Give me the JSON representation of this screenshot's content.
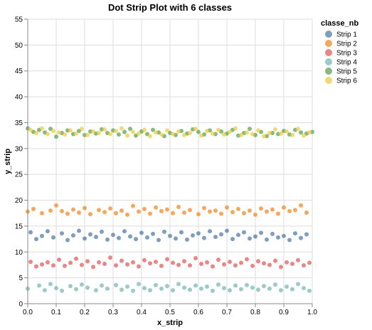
{
  "chart_data": {
    "type": "scatter",
    "title": "Dot Strip Plot with 6 classes",
    "xlabel": "x_strip",
    "ylabel": "y_strip",
    "xlim": [
      0,
      1
    ],
    "ylim": [
      0,
      55
    ],
    "x_ticks": [
      "0.0",
      "0.1",
      "0.2",
      "0.3",
      "0.4",
      "0.5",
      "0.6",
      "0.7",
      "0.8",
      "0.9",
      "1.0"
    ],
    "y_ticks": [
      "0",
      "5",
      "10",
      "15",
      "20",
      "25",
      "30",
      "35",
      "40",
      "45",
      "50",
      "55"
    ],
    "grid": true,
    "legend": {
      "title": "classe_nb",
      "placement": "top-right",
      "entries": [
        "Strip 1",
        "Strip 2",
        "Strip 3",
        "Strip 4",
        "Strip 5",
        "Strip 6"
      ]
    },
    "series": [
      {
        "name": "Strip 1",
        "color": "#4c78a8",
        "points": [
          [
            0.01,
            13.8
          ],
          [
            0.03,
            12.5
          ],
          [
            0.05,
            13.1
          ],
          [
            0.07,
            14.0
          ],
          [
            0.09,
            12.8
          ],
          [
            0.12,
            13.6
          ],
          [
            0.14,
            12.3
          ],
          [
            0.16,
            13.2
          ],
          [
            0.18,
            14.1
          ],
          [
            0.2,
            12.6
          ],
          [
            0.22,
            13.4
          ],
          [
            0.24,
            12.9
          ],
          [
            0.26,
            13.9
          ],
          [
            0.28,
            12.4
          ],
          [
            0.3,
            13.3
          ],
          [
            0.32,
            12.7
          ],
          [
            0.34,
            14.0
          ],
          [
            0.36,
            13.0
          ],
          [
            0.38,
            12.5
          ],
          [
            0.4,
            13.7
          ],
          [
            0.42,
            12.8
          ],
          [
            0.44,
            13.5
          ],
          [
            0.46,
            12.3
          ],
          [
            0.48,
            13.9
          ],
          [
            0.5,
            13.1
          ],
          [
            0.52,
            12.6
          ],
          [
            0.54,
            13.8
          ],
          [
            0.56,
            12.4
          ],
          [
            0.58,
            13.2
          ],
          [
            0.6,
            13.6
          ],
          [
            0.62,
            12.7
          ],
          [
            0.64,
            14.0
          ],
          [
            0.66,
            12.9
          ],
          [
            0.68,
            13.4
          ],
          [
            0.7,
            14.1
          ],
          [
            0.72,
            12.5
          ],
          [
            0.74,
            13.3
          ],
          [
            0.76,
            13.8
          ],
          [
            0.78,
            12.6
          ],
          [
            0.8,
            13.0
          ],
          [
            0.82,
            13.7
          ],
          [
            0.84,
            12.4
          ],
          [
            0.86,
            13.5
          ],
          [
            0.88,
            12.8
          ],
          [
            0.9,
            13.1
          ],
          [
            0.92,
            12.3
          ],
          [
            0.94,
            13.6
          ],
          [
            0.96,
            12.7
          ],
          [
            0.98,
            13.4
          ]
        ]
      },
      {
        "name": "Strip 2",
        "color": "#f58518",
        "points": [
          [
            0.0,
            17.8
          ],
          [
            0.02,
            18.3
          ],
          [
            0.05,
            17.5
          ],
          [
            0.08,
            18.0
          ],
          [
            0.1,
            19.0
          ],
          [
            0.12,
            17.9
          ],
          [
            0.14,
            17.4
          ],
          [
            0.16,
            18.2
          ],
          [
            0.18,
            17.6
          ],
          [
            0.2,
            18.5
          ],
          [
            0.22,
            17.3
          ],
          [
            0.25,
            18.1
          ],
          [
            0.27,
            17.7
          ],
          [
            0.29,
            18.4
          ],
          [
            0.31,
            17.5
          ],
          [
            0.33,
            18.0
          ],
          [
            0.35,
            17.2
          ],
          [
            0.37,
            18.9
          ],
          [
            0.39,
            17.8
          ],
          [
            0.41,
            18.3
          ],
          [
            0.43,
            17.4
          ],
          [
            0.45,
            18.6
          ],
          [
            0.47,
            17.9
          ],
          [
            0.49,
            18.2
          ],
          [
            0.51,
            17.5
          ],
          [
            0.53,
            18.7
          ],
          [
            0.55,
            17.6
          ],
          [
            0.57,
            18.1
          ],
          [
            0.6,
            17.3
          ],
          [
            0.62,
            18.5
          ],
          [
            0.64,
            17.8
          ],
          [
            0.66,
            18.0
          ],
          [
            0.68,
            17.4
          ],
          [
            0.7,
            18.6
          ],
          [
            0.72,
            17.7
          ],
          [
            0.74,
            18.3
          ],
          [
            0.76,
            17.5
          ],
          [
            0.78,
            18.0
          ],
          [
            0.8,
            17.2
          ],
          [
            0.82,
            18.4
          ],
          [
            0.84,
            17.8
          ],
          [
            0.86,
            18.2
          ],
          [
            0.88,
            17.4
          ],
          [
            0.9,
            18.6
          ],
          [
            0.92,
            17.9
          ],
          [
            0.94,
            18.1
          ],
          [
            0.96,
            19.0
          ],
          [
            0.98,
            17.6
          ]
        ]
      },
      {
        "name": "Strip 3",
        "color": "#e45756",
        "points": [
          [
            0.01,
            8.1
          ],
          [
            0.03,
            7.2
          ],
          [
            0.05,
            7.6
          ],
          [
            0.07,
            8.0
          ],
          [
            0.09,
            7.4
          ],
          [
            0.11,
            8.5
          ],
          [
            0.13,
            7.3
          ],
          [
            0.15,
            7.9
          ],
          [
            0.17,
            8.7
          ],
          [
            0.19,
            7.5
          ],
          [
            0.21,
            8.2
          ],
          [
            0.23,
            7.1
          ],
          [
            0.25,
            8.0
          ],
          [
            0.27,
            7.7
          ],
          [
            0.29,
            8.9
          ],
          [
            0.31,
            7.4
          ],
          [
            0.33,
            8.3
          ],
          [
            0.35,
            7.6
          ],
          [
            0.37,
            8.0
          ],
          [
            0.39,
            7.2
          ],
          [
            0.41,
            8.4
          ],
          [
            0.43,
            7.8
          ],
          [
            0.45,
            8.1
          ],
          [
            0.47,
            7.3
          ],
          [
            0.49,
            8.6
          ],
          [
            0.51,
            7.9
          ],
          [
            0.53,
            7.5
          ],
          [
            0.55,
            8.2
          ],
          [
            0.57,
            7.4
          ],
          [
            0.59,
            8.8
          ],
          [
            0.61,
            7.7
          ],
          [
            0.63,
            8.0
          ],
          [
            0.65,
            7.2
          ],
          [
            0.67,
            8.5
          ],
          [
            0.69,
            7.6
          ],
          [
            0.71,
            8.1
          ],
          [
            0.73,
            7.4
          ],
          [
            0.75,
            7.9
          ],
          [
            0.77,
            8.6
          ],
          [
            0.79,
            7.3
          ],
          [
            0.81,
            8.2
          ],
          [
            0.83,
            7.8
          ],
          [
            0.85,
            7.5
          ],
          [
            0.87,
            8.3
          ],
          [
            0.89,
            7.1
          ],
          [
            0.91,
            8.0
          ],
          [
            0.93,
            7.7
          ],
          [
            0.95,
            8.4
          ],
          [
            0.97,
            7.4
          ],
          [
            0.99,
            7.9
          ]
        ]
      },
      {
        "name": "Strip 4",
        "color": "#72b7b2",
        "points": [
          [
            0.0,
            2.9
          ],
          [
            0.04,
            3.5
          ],
          [
            0.06,
            2.6
          ],
          [
            0.08,
            3.8
          ],
          [
            0.1,
            3.0
          ],
          [
            0.12,
            2.5
          ],
          [
            0.15,
            3.4
          ],
          [
            0.17,
            2.8
          ],
          [
            0.19,
            3.7
          ],
          [
            0.21,
            3.1
          ],
          [
            0.24,
            2.6
          ],
          [
            0.26,
            3.5
          ],
          [
            0.28,
            2.9
          ],
          [
            0.31,
            3.6
          ],
          [
            0.33,
            2.7
          ],
          [
            0.35,
            3.3
          ],
          [
            0.37,
            2.5
          ],
          [
            0.39,
            3.8
          ],
          [
            0.41,
            3.0
          ],
          [
            0.43,
            2.6
          ],
          [
            0.45,
            3.6
          ],
          [
            0.47,
            2.9
          ],
          [
            0.49,
            3.4
          ],
          [
            0.51,
            2.6
          ],
          [
            0.53,
            3.8
          ],
          [
            0.55,
            3.1
          ],
          [
            0.57,
            2.7
          ],
          [
            0.59,
            3.5
          ],
          [
            0.61,
            2.9
          ],
          [
            0.63,
            3.3
          ],
          [
            0.65,
            2.5
          ],
          [
            0.67,
            3.7
          ],
          [
            0.69,
            3.0
          ],
          [
            0.71,
            2.6
          ],
          [
            0.73,
            3.5
          ],
          [
            0.75,
            2.8
          ],
          [
            0.77,
            3.6
          ],
          [
            0.79,
            3.1
          ],
          [
            0.81,
            2.7
          ],
          [
            0.83,
            3.4
          ],
          [
            0.85,
            2.9
          ],
          [
            0.87,
            3.7
          ],
          [
            0.89,
            2.6
          ],
          [
            0.91,
            3.3
          ],
          [
            0.93,
            2.8
          ],
          [
            0.95,
            3.8
          ],
          [
            0.97,
            3.0
          ],
          [
            0.99,
            2.5
          ]
        ]
      },
      {
        "name": "Strip 5",
        "color": "#54a24b",
        "points": [
          [
            0.0,
            33.9
          ],
          [
            0.02,
            33.2
          ],
          [
            0.04,
            33.6
          ],
          [
            0.06,
            33.1
          ],
          [
            0.08,
            33.8
          ],
          [
            0.1,
            32.3
          ],
          [
            0.12,
            33.0
          ],
          [
            0.14,
            33.5
          ],
          [
            0.16,
            32.8
          ],
          [
            0.18,
            33.4
          ],
          [
            0.2,
            32.6
          ],
          [
            0.22,
            33.3
          ],
          [
            0.24,
            32.9
          ],
          [
            0.26,
            33.7
          ],
          [
            0.28,
            33.0
          ],
          [
            0.3,
            33.5
          ],
          [
            0.32,
            32.7
          ],
          [
            0.34,
            33.2
          ],
          [
            0.36,
            33.8
          ],
          [
            0.38,
            32.5
          ],
          [
            0.4,
            33.3
          ],
          [
            0.42,
            32.8
          ],
          [
            0.44,
            33.6
          ],
          [
            0.46,
            33.1
          ],
          [
            0.48,
            32.4
          ],
          [
            0.5,
            33.0
          ],
          [
            0.52,
            32.6
          ],
          [
            0.54,
            33.4
          ],
          [
            0.56,
            32.9
          ],
          [
            0.58,
            33.7
          ],
          [
            0.6,
            33.2
          ],
          [
            0.62,
            32.7
          ],
          [
            0.64,
            33.5
          ],
          [
            0.66,
            32.8
          ],
          [
            0.68,
            33.3
          ],
          [
            0.7,
            32.9
          ],
          [
            0.72,
            33.6
          ],
          [
            0.74,
            32.5
          ],
          [
            0.76,
            33.0
          ],
          [
            0.78,
            33.8
          ],
          [
            0.8,
            32.6
          ],
          [
            0.82,
            33.2
          ],
          [
            0.84,
            32.4
          ],
          [
            0.86,
            33.0
          ],
          [
            0.88,
            32.8
          ],
          [
            0.9,
            33.4
          ],
          [
            0.92,
            32.7
          ],
          [
            0.94,
            33.6
          ],
          [
            0.96,
            33.1
          ],
          [
            0.98,
            32.9
          ],
          [
            1.0,
            33.2
          ]
        ]
      },
      {
        "name": "Strip 6",
        "color": "#eeca3b",
        "points": [
          [
            0.01,
            33.6
          ],
          [
            0.03,
            33.0
          ],
          [
            0.05,
            33.9
          ],
          [
            0.07,
            32.8
          ],
          [
            0.09,
            33.4
          ],
          [
            0.11,
            33.1
          ],
          [
            0.13,
            32.7
          ],
          [
            0.15,
            33.5
          ],
          [
            0.17,
            32.9
          ],
          [
            0.19,
            33.8
          ],
          [
            0.21,
            32.6
          ],
          [
            0.23,
            33.3
          ],
          [
            0.25,
            33.0
          ],
          [
            0.27,
            33.7
          ],
          [
            0.29,
            32.8
          ],
          [
            0.31,
            33.4
          ],
          [
            0.33,
            33.9
          ],
          [
            0.35,
            32.5
          ],
          [
            0.37,
            33.2
          ],
          [
            0.39,
            32.9
          ],
          [
            0.41,
            33.6
          ],
          [
            0.43,
            32.4
          ],
          [
            0.45,
            33.1
          ],
          [
            0.47,
            32.7
          ],
          [
            0.49,
            33.5
          ],
          [
            0.51,
            32.8
          ],
          [
            0.53,
            33.3
          ],
          [
            0.55,
            32.6
          ],
          [
            0.57,
            33.0
          ],
          [
            0.59,
            33.8
          ],
          [
            0.61,
            32.5
          ],
          [
            0.63,
            33.4
          ],
          [
            0.65,
            32.9
          ],
          [
            0.67,
            33.6
          ],
          [
            0.69,
            32.7
          ],
          [
            0.71,
            33.2
          ],
          [
            0.73,
            33.9
          ],
          [
            0.75,
            32.6
          ],
          [
            0.77,
            33.1
          ],
          [
            0.79,
            32.8
          ],
          [
            0.81,
            33.5
          ],
          [
            0.83,
            32.4
          ],
          [
            0.85,
            33.0
          ],
          [
            0.87,
            33.7
          ],
          [
            0.89,
            32.9
          ],
          [
            0.91,
            33.3
          ],
          [
            0.93,
            32.6
          ],
          [
            0.95,
            33.8
          ],
          [
            0.97,
            32.5
          ],
          [
            0.99,
            33.1
          ]
        ]
      }
    ]
  }
}
